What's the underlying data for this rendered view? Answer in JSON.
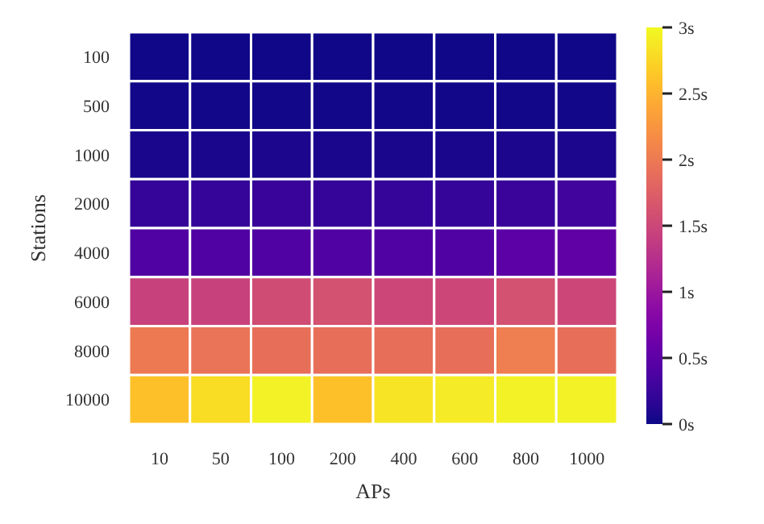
{
  "chart_data": {
    "type": "heatmap",
    "xlabel": "APs",
    "ylabel": "Stations",
    "categories": [
      "10",
      "50",
      "100",
      "200",
      "400",
      "600",
      "800",
      "1000"
    ],
    "y_categories": [
      "100",
      "500",
      "1000",
      "2000",
      "4000",
      "6000",
      "8000",
      "10000"
    ],
    "cells": [
      [
        0.02,
        0.02,
        0.02,
        0.02,
        0.02,
        0.02,
        0.02,
        0.02
      ],
      [
        0.03,
        0.03,
        0.03,
        0.03,
        0.03,
        0.03,
        0.03,
        0.03
      ],
      [
        0.05,
        0.05,
        0.06,
        0.05,
        0.05,
        0.05,
        0.06,
        0.07
      ],
      [
        0.22,
        0.22,
        0.24,
        0.22,
        0.22,
        0.22,
        0.25,
        0.3
      ],
      [
        0.4,
        0.4,
        0.4,
        0.42,
        0.42,
        0.42,
        0.5,
        0.52
      ],
      [
        1.45,
        1.45,
        1.55,
        1.6,
        1.5,
        1.5,
        1.6,
        1.5
      ],
      [
        2.0,
        1.95,
        1.9,
        1.9,
        1.9,
        1.9,
        2.05,
        1.9
      ],
      [
        2.6,
        2.8,
        2.95,
        2.6,
        2.85,
        2.9,
        2.95,
        2.95
      ]
    ],
    "clim": [
      0,
      3
    ],
    "cticks": [
      {
        "value": 0,
        "label": "0s"
      },
      {
        "value": 0.5,
        "label": "0.5s"
      },
      {
        "value": 1,
        "label": "1s"
      },
      {
        "value": 1.5,
        "label": "1.5s"
      },
      {
        "value": 2,
        "label": "2s"
      },
      {
        "value": 2.5,
        "label": "2.5s"
      },
      {
        "value": 3,
        "label": "3s"
      }
    ]
  }
}
